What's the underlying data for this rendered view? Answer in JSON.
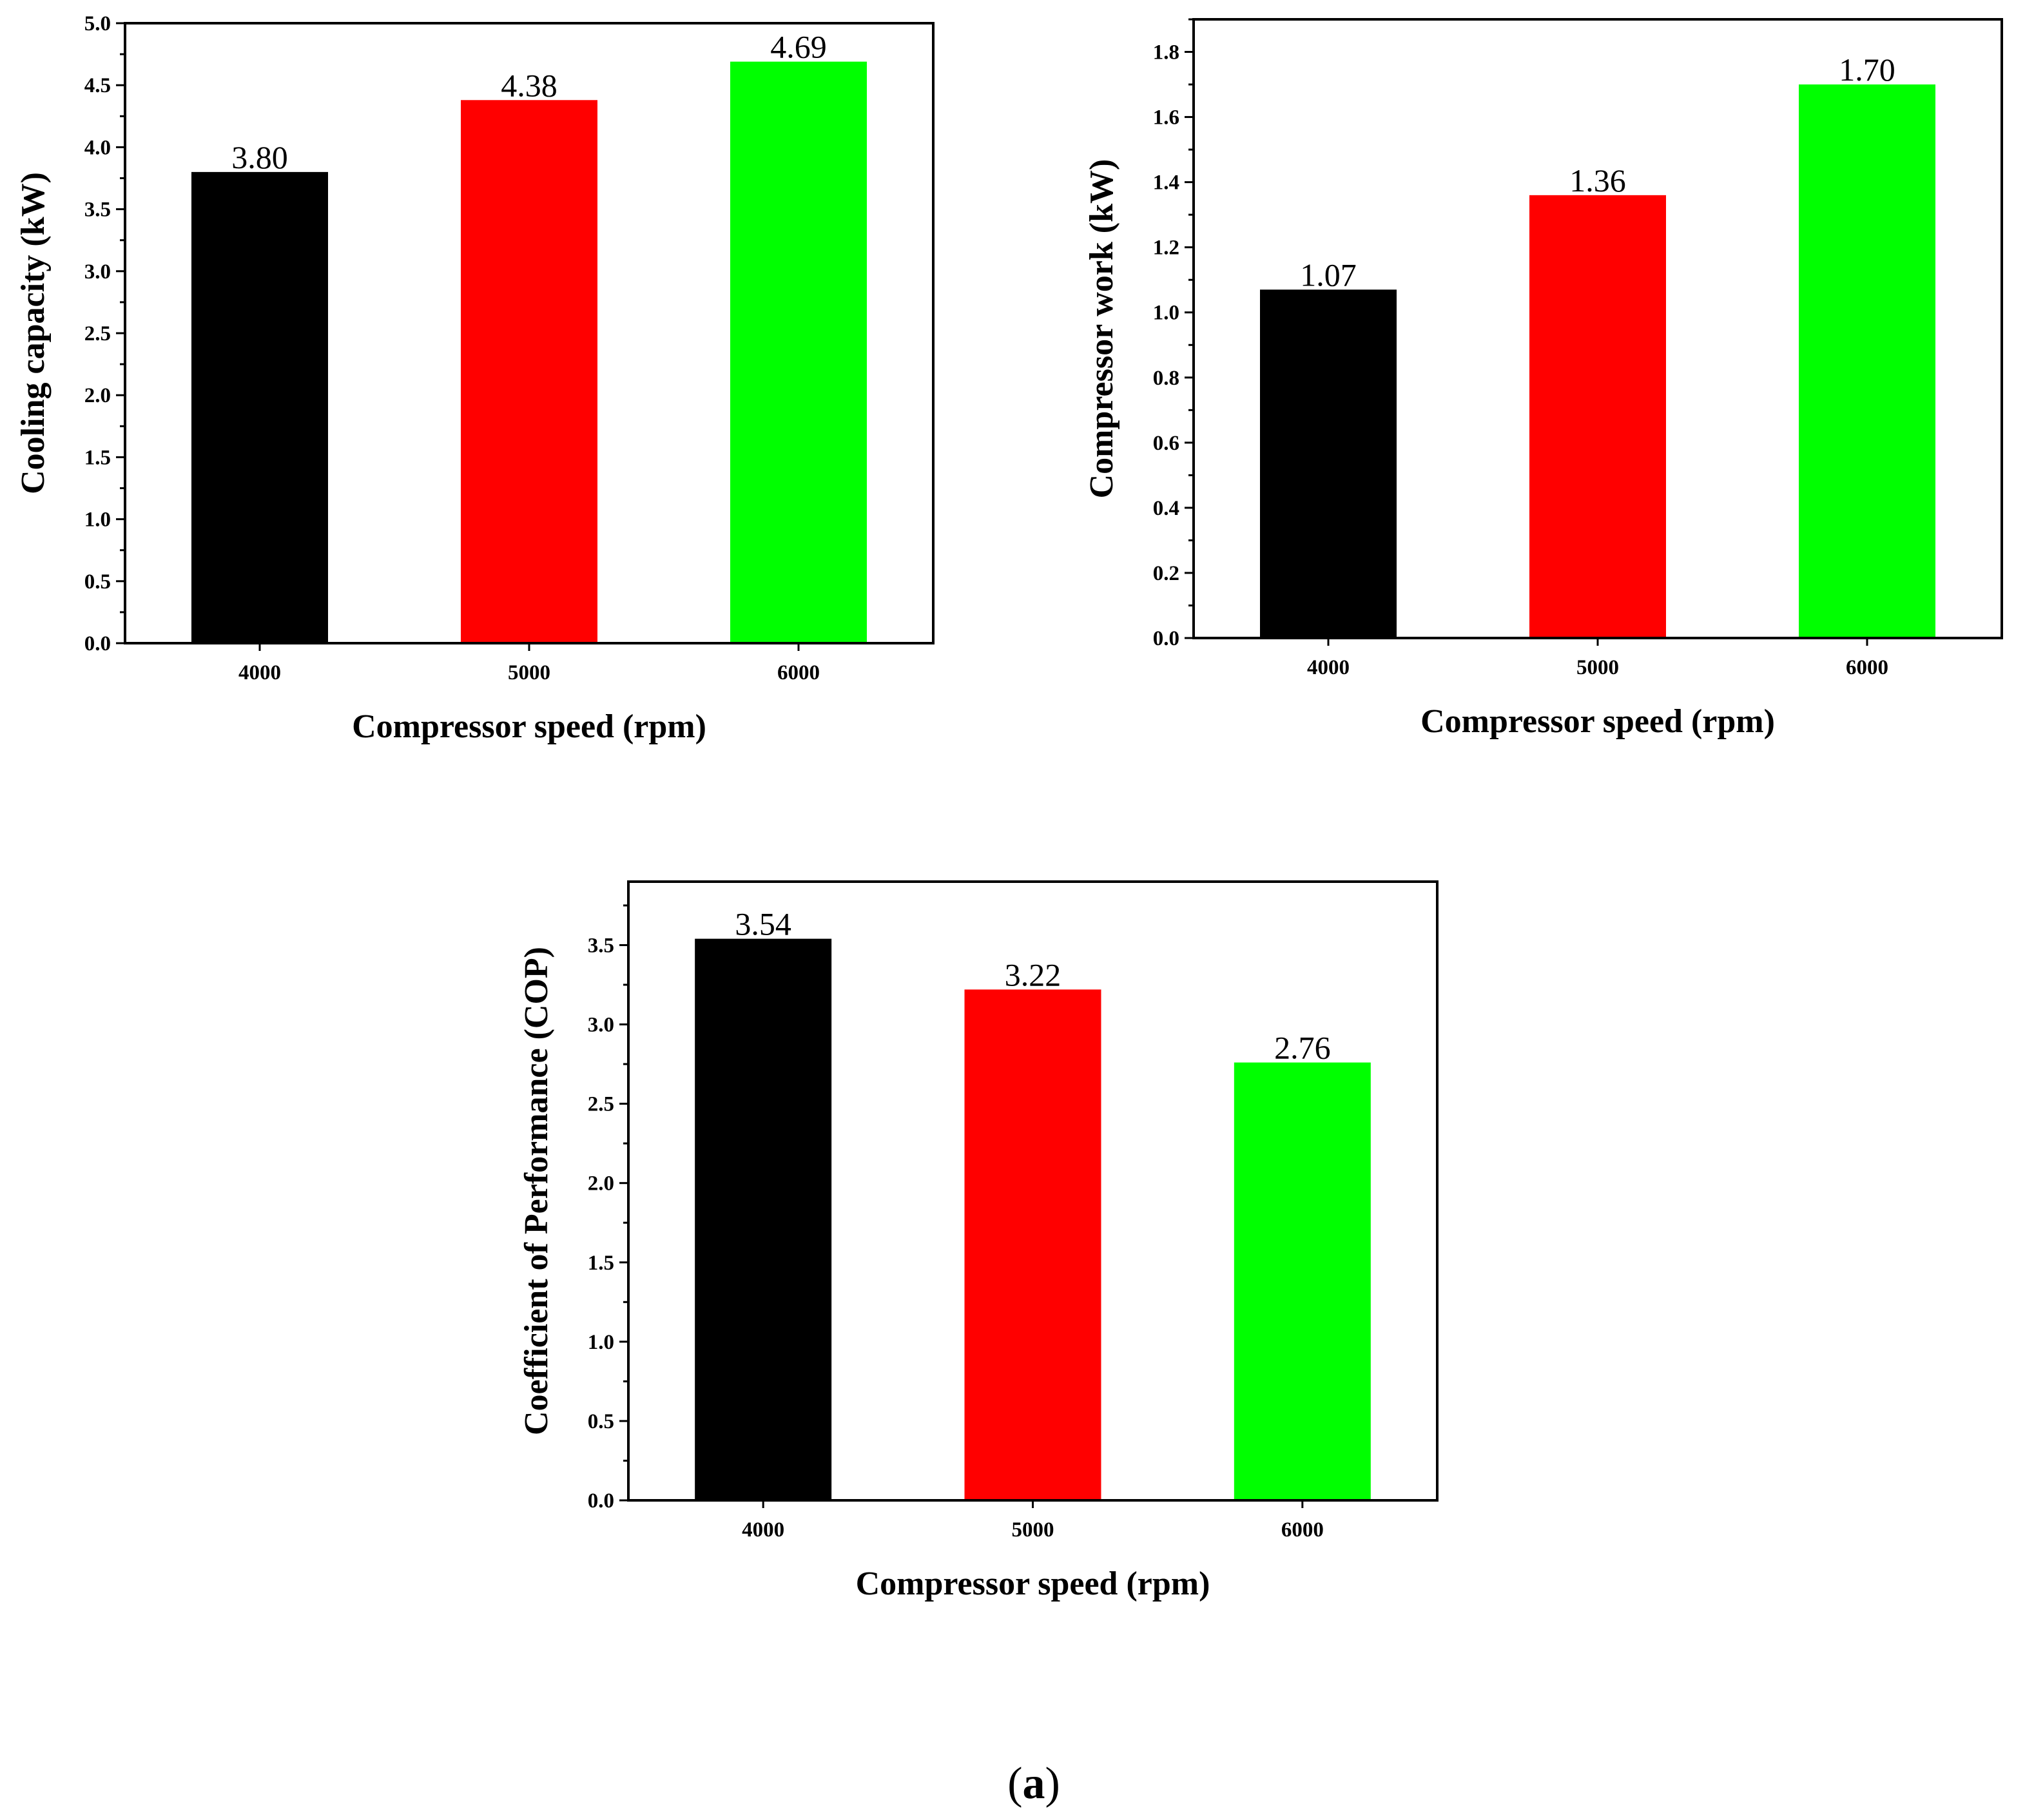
{
  "chart_data": [
    {
      "type": "bar",
      "categories": [
        "4000",
        "5000",
        "6000"
      ],
      "values": [
        3.8,
        4.38,
        4.69
      ],
      "value_labels": [
        "3.80",
        "4.38",
        "4.69"
      ],
      "bar_colors": [
        "#000000",
        "#ff0000",
        "#00ff00"
      ],
      "title": "",
      "xlabel": "Compressor speed (rpm)",
      "ylabel": "Cooling capacity (kW)",
      "ylim": [
        0,
        5.0
      ],
      "yticks": [
        "0.0",
        "0.5",
        "1.0",
        "1.5",
        "2.0",
        "2.5",
        "3.0",
        "3.5",
        "4.0",
        "4.5",
        "5.0"
      ],
      "ytick_step": 0.5,
      "minor_ticks": true,
      "grid": false
    },
    {
      "type": "bar",
      "categories": [
        "4000",
        "5000",
        "6000"
      ],
      "values": [
        1.07,
        1.36,
        1.7
      ],
      "value_labels": [
        "1.07",
        "1.36",
        "1.70"
      ],
      "bar_colors": [
        "#000000",
        "#ff0000",
        "#00ff00"
      ],
      "title": "",
      "xlabel": "Compressor speed (rpm)",
      "ylabel": "Compressor work (kW)",
      "ylim": [
        0,
        1.9
      ],
      "yticks": [
        "0.0",
        "0.2",
        "0.4",
        "0.6",
        "0.8",
        "1.0",
        "1.2",
        "1.4",
        "1.6",
        "1.8"
      ],
      "ytick_step": 0.2,
      "minor_ticks": true,
      "grid": false
    },
    {
      "type": "bar",
      "categories": [
        "4000",
        "5000",
        "6000"
      ],
      "values": [
        3.54,
        3.22,
        2.76
      ],
      "value_labels": [
        "3.54",
        "3.22",
        "2.76"
      ],
      "bar_colors": [
        "#000000",
        "#ff0000",
        "#00ff00"
      ],
      "title": "",
      "xlabel": "Compressor speed (rpm)",
      "ylabel": "Coefficient of Performance (COP)",
      "ylim": [
        0,
        3.9
      ],
      "yticks": [
        "0.0",
        "0.5",
        "1.0",
        "1.5",
        "2.0",
        "2.5",
        "3.0",
        "3.5"
      ],
      "ytick_step": 0.5,
      "minor_ticks": true,
      "grid": false
    }
  ],
  "caption": {
    "open": "(",
    "letter": "a",
    "close": ")"
  }
}
